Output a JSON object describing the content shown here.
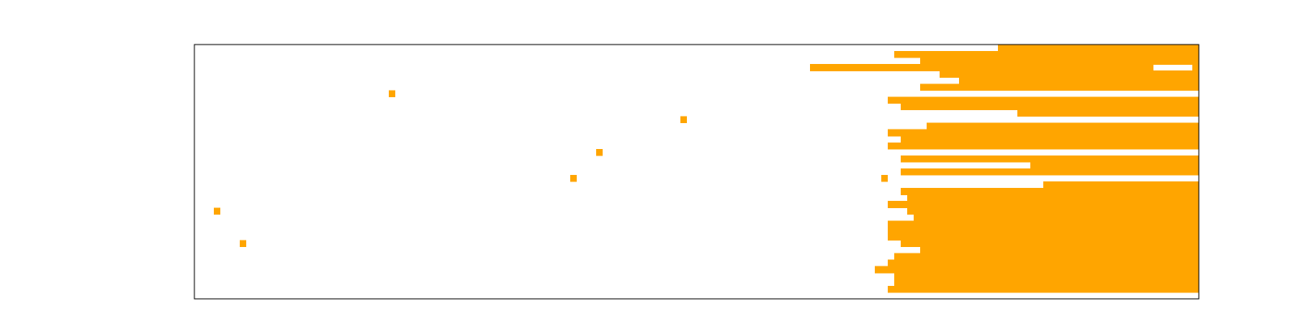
{
  "chart_data": {
    "type": "heatmap",
    "title": "",
    "xlabel": "",
    "ylabel": "",
    "n_cols": 155,
    "n_rows": 39,
    "x_ticks": [],
    "y_ticks": [],
    "grid": false,
    "fill_color": "#ffa500",
    "background_color": "#ffffff",
    "frame_color": "#000000",
    "rows": [
      {
        "row": 0,
        "fill_from_col": 124
      },
      {
        "row": 1,
        "fill_from_col": 108
      },
      {
        "row": 2,
        "fill_from_col": 112
      },
      {
        "row": 3,
        "fill_from_col": 95,
        "gaps": [
          [
            148,
            154
          ]
        ]
      },
      {
        "row": 4,
        "fill_from_col": 115
      },
      {
        "row": 5,
        "fill_from_col": 118
      },
      {
        "row": 6,
        "fill_from_col": 112
      },
      {
        "row": 7,
        "fill_from_col": 155
      },
      {
        "row": 8,
        "fill_from_col": 107
      },
      {
        "row": 9,
        "fill_from_col": 109
      },
      {
        "row": 10,
        "fill_from_col": 127
      },
      {
        "row": 11,
        "fill_from_col": 155
      },
      {
        "row": 12,
        "fill_from_col": 113
      },
      {
        "row": 13,
        "fill_from_col": 107
      },
      {
        "row": 14,
        "fill_from_col": 109
      },
      {
        "row": 15,
        "fill_from_col": 107
      },
      {
        "row": 16,
        "fill_from_col": 155
      },
      {
        "row": 17,
        "fill_from_col": 109
      },
      {
        "row": 18,
        "fill_from_col": 129
      },
      {
        "row": 19,
        "fill_from_col": 109
      },
      {
        "row": 20,
        "fill_from_col": 155
      },
      {
        "row": 21,
        "fill_from_col": 131
      },
      {
        "row": 22,
        "fill_from_col": 109
      },
      {
        "row": 23,
        "fill_from_col": 110
      },
      {
        "row": 24,
        "fill_from_col": 107
      },
      {
        "row": 25,
        "fill_from_col": 110
      },
      {
        "row": 26,
        "fill_from_col": 111
      },
      {
        "row": 27,
        "fill_from_col": 107
      },
      {
        "row": 28,
        "fill_from_col": 107
      },
      {
        "row": 29,
        "fill_from_col": 107
      },
      {
        "row": 30,
        "fill_from_col": 109
      },
      {
        "row": 31,
        "fill_from_col": 112
      },
      {
        "row": 32,
        "fill_from_col": 108
      },
      {
        "row": 33,
        "fill_from_col": 107
      },
      {
        "row": 34,
        "fill_from_col": 105
      },
      {
        "row": 35,
        "fill_from_col": 108
      },
      {
        "row": 36,
        "fill_from_col": 108
      },
      {
        "row": 37,
        "fill_from_col": 107
      },
      {
        "row": 38,
        "fill_from_col": 155
      }
    ],
    "isolated_cells": [
      {
        "row": 7,
        "col": 30
      },
      {
        "row": 11,
        "col": 75
      },
      {
        "row": 16,
        "col": 62
      },
      {
        "row": 20,
        "col": 58
      },
      {
        "row": 20,
        "col": 106
      },
      {
        "row": 25,
        "col": 3
      },
      {
        "row": 30,
        "col": 7
      }
    ]
  }
}
